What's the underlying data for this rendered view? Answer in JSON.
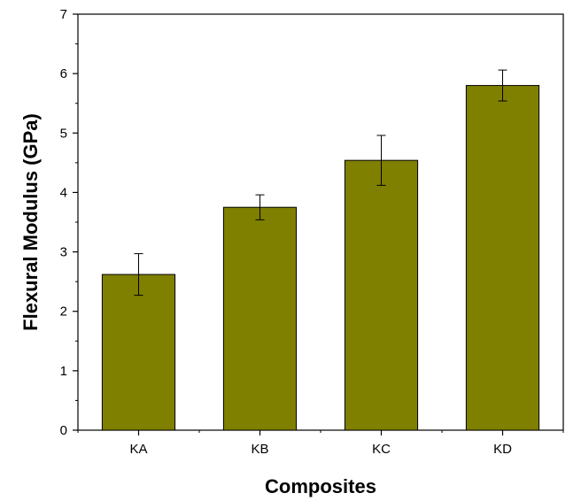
{
  "chart_data": {
    "type": "bar",
    "title": "",
    "xlabel": "Composites",
    "ylabel": "Flexural Modulus (GPa)",
    "ylim": [
      0,
      7
    ],
    "yticks": [
      0,
      1,
      2,
      3,
      4,
      5,
      6,
      7
    ],
    "categories": [
      "KA",
      "KB",
      "KC",
      "KD"
    ],
    "values": [
      2.62,
      3.75,
      4.54,
      5.8
    ],
    "errors": [
      0.35,
      0.21,
      0.42,
      0.26
    ],
    "grid": false,
    "legend": "none",
    "bar_color": "#7f7f00",
    "bar_edge_color": "#000000"
  }
}
